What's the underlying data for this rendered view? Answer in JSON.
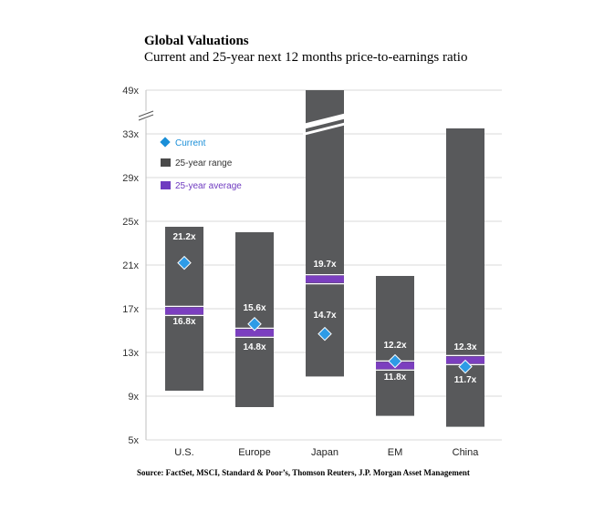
{
  "title": "Global Valuations",
  "subtitle": "Current and 25-year next 12 months price-to-earnings ratio",
  "source": "Source: FactSet, MSCI, Standard & Poor’s, Thomson Reuters, J.P. Morgan Asset Management",
  "colors": {
    "range": "#58595b",
    "average": "#7b3fbf",
    "current": "#2e9be6",
    "grid": "#d9d9d9",
    "legend_current": "#1a8fd8",
    "legend_average": "#6f3bc0"
  },
  "chart_data": {
    "type": "bar",
    "title": "Global Valuations",
    "subtitle": "Current and 25-year next 12 months price-to-earnings ratio",
    "categories": [
      "U.S.",
      "Europe",
      "Japan",
      "EM",
      "China"
    ],
    "y_ticks": [
      "5x",
      "9x",
      "13x",
      "17x",
      "21x",
      "25x",
      "29x",
      "33x",
      "49x"
    ],
    "y_tick_values": [
      5,
      9,
      13,
      17,
      21,
      25,
      29,
      33,
      49
    ],
    "axis_break": "between 33x and 49x",
    "grid": true,
    "legend": {
      "placement": "top-left",
      "items": [
        "Current",
        "25-year range",
        "25-year average"
      ]
    },
    "series": [
      {
        "name": "25-year range",
        "low": [
          9.5,
          8.0,
          10.8,
          7.2,
          6.2
        ],
        "high": [
          24.5,
          24.0,
          49,
          20.0,
          35.0
        ]
      },
      {
        "name": "25-year average",
        "values": [
          16.8,
          14.8,
          19.7,
          11.8,
          12.3
        ]
      },
      {
        "name": "Current",
        "values": [
          21.2,
          15.6,
          14.7,
          12.2,
          11.7
        ]
      }
    ],
    "labels": [
      {
        "category": "U.S.",
        "upper": "21.2x",
        "lower": "16.8x"
      },
      {
        "category": "Europe",
        "upper": "15.6x",
        "lower": "14.8x"
      },
      {
        "category": "Japan",
        "upper": "19.7x",
        "lower": "14.7x"
      },
      {
        "category": "EM",
        "upper": "12.2x",
        "lower": "11.8x"
      },
      {
        "category": "China",
        "upper": "12.3x",
        "lower": "11.7x"
      }
    ]
  }
}
